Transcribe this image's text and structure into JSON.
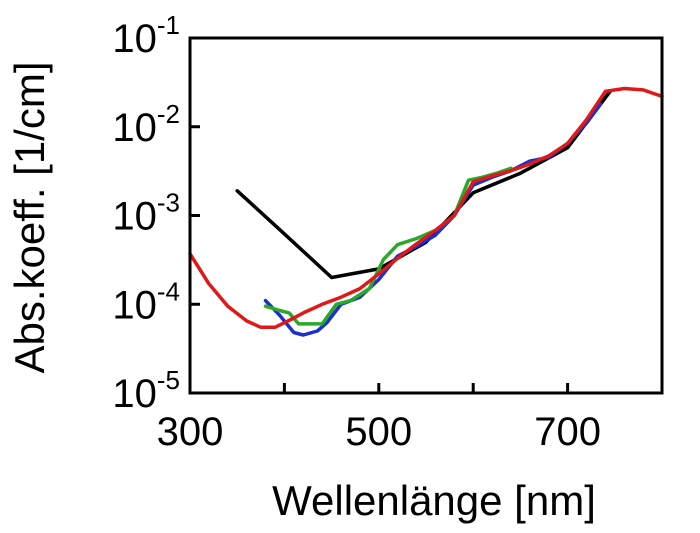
{
  "chart_data": {
    "type": "line",
    "title": "",
    "xlabel": "Wellenlänge  [nm]",
    "ylabel": "Abs.koeff.  [1/cm]",
    "xlim": [
      300,
      800
    ],
    "ylim": [
      1e-05,
      0.1
    ],
    "yscale": "log",
    "xticks": [
      300,
      400,
      500,
      600,
      700,
      800
    ],
    "xtick_labels": [
      "300",
      "500",
      "700"
    ],
    "yticks": [
      1e-05,
      0.0001,
      0.001,
      0.01,
      0.1
    ],
    "ytick_labels": [
      {
        "base": "10",
        "exp": "-5"
      },
      {
        "base": "10",
        "exp": "-4"
      },
      {
        "base": "10",
        "exp": "-3"
      },
      {
        "base": "10",
        "exp": "-2"
      },
      {
        "base": "10",
        "exp": "-1"
      }
    ],
    "grid": false,
    "series": [
      {
        "color": "#000000",
        "x": [
          350,
          400,
          450,
          500,
          550,
          600,
          650,
          700,
          745
        ],
        "y": [
          0.0019,
          0.00062,
          0.0002,
          0.00025,
          0.0005,
          0.0018,
          0.003,
          0.0058,
          0.025
        ]
      },
      {
        "color": "#1a2fd0",
        "x": [
          380,
          395,
          410,
          420,
          435,
          445,
          460,
          480,
          500,
          520,
          540,
          560,
          580,
          600,
          620,
          640,
          660,
          680,
          700,
          720,
          735
        ],
        "y": [
          0.00011,
          7.5e-05,
          4.8e-05,
          4.5e-05,
          5e-05,
          6.2e-05,
          0.0001,
          0.00012,
          0.00019,
          0.00035,
          0.00045,
          0.0006,
          0.001,
          0.0022,
          0.0027,
          0.0032,
          0.0041,
          0.0045,
          0.0065,
          0.011,
          0.018
        ]
      },
      {
        "color": "#2aa82a",
        "x": [
          380,
          395,
          405,
          415,
          425,
          440,
          455,
          470,
          490,
          505,
          520,
          540,
          560,
          580,
          595,
          610,
          625,
          640
        ],
        "y": [
          9.5e-05,
          8.5e-05,
          8e-05,
          6e-05,
          6e-05,
          6e-05,
          0.0001,
          0.00011,
          0.00015,
          0.00032,
          0.00047,
          0.00055,
          0.00068,
          0.001,
          0.0025,
          0.0027,
          0.003,
          0.0034
        ]
      },
      {
        "color": "#e01818",
        "x": [
          300,
          320,
          340,
          360,
          375,
          390,
          400,
          410,
          420,
          440,
          460,
          480,
          500,
          520,
          540,
          560,
          580,
          600,
          620,
          640,
          660,
          680,
          700,
          720,
          740,
          760,
          780,
          800
        ],
        "y": [
          0.00037,
          0.00017,
          9.5e-05,
          6.5e-05,
          5.5e-05,
          5.5e-05,
          6.2e-05,
          7e-05,
          8e-05,
          0.0001,
          0.00012,
          0.00015,
          0.00022,
          0.00033,
          0.00048,
          0.00068,
          0.001,
          0.0024,
          0.0028,
          0.0032,
          0.0038,
          0.0047,
          0.0065,
          0.012,
          0.025,
          0.027,
          0.026,
          0.022
        ]
      }
    ]
  }
}
